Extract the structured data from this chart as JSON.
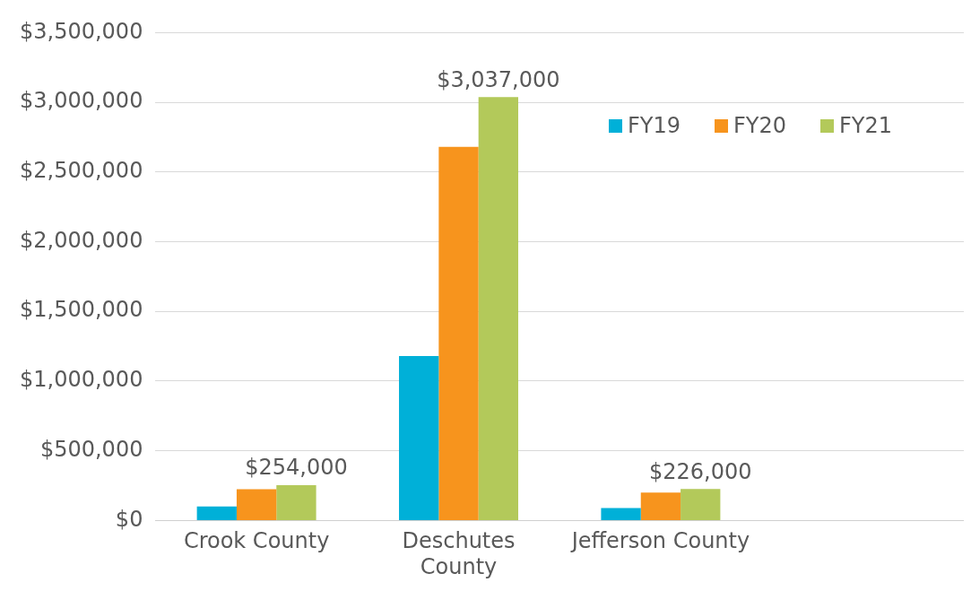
{
  "chart_data": {
    "type": "bar",
    "categories": [
      "Crook County",
      "Deschutes County",
      "Jefferson County",
      null
    ],
    "series": [
      {
        "name": "FY19",
        "color": "#00b0d8",
        "values": [
          100000,
          1180000,
          90000,
          null
        ]
      },
      {
        "name": "FY20",
        "color": "#f7941d",
        "values": [
          225000,
          2680000,
          200000,
          null
        ]
      },
      {
        "name": "FY21",
        "color": "#b3c95a",
        "values": [
          254000,
          3037000,
          226000,
          null
        ],
        "value_labels": [
          "$254,000",
          "$3,037,000",
          "$226,000",
          null
        ]
      }
    ],
    "ylim": [
      0,
      3500000
    ],
    "yticks": [
      {
        "value": 0,
        "label": "$0"
      },
      {
        "value": 500000,
        "label": "$500,000"
      },
      {
        "value": 1000000,
        "label": "$1,000,000"
      },
      {
        "value": 1500000,
        "label": "$1,500,000"
      },
      {
        "value": 2000000,
        "label": "$2,000,000"
      },
      {
        "value": 2500000,
        "label": "$2,500,000"
      },
      {
        "value": 3000000,
        "label": "$3,000,000"
      },
      {
        "value": 3500000,
        "label": "$3,500,000"
      }
    ],
    "grid": "y",
    "legend": "top right"
  }
}
